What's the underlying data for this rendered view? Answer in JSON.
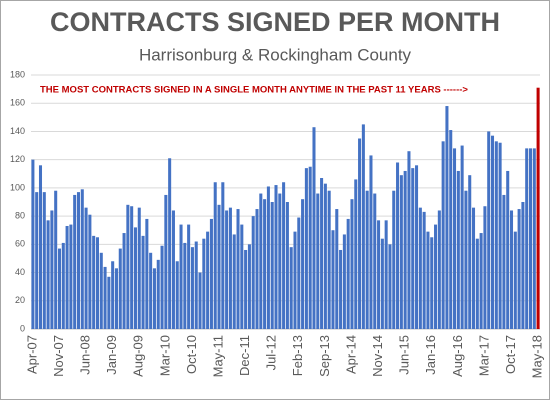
{
  "chart_data": {
    "type": "bar",
    "title": "CONTRACTS SIGNED PER MONTH",
    "subtitle": "Harrisonburg & Rockingham County",
    "annotation": "THE MOST CONTRACTS SIGNED IN A SINGLE MONTH ANYTIME IN THE PAST 11 YEARS ------>",
    "categories": [
      "Apr-07",
      null,
      null,
      null,
      null,
      null,
      null,
      "Nov-07",
      null,
      null,
      null,
      null,
      null,
      null,
      "Jun-08",
      null,
      null,
      null,
      null,
      null,
      null,
      "Jan-09",
      null,
      null,
      null,
      null,
      null,
      null,
      "Aug-09",
      null,
      null,
      null,
      null,
      null,
      null,
      "Mar-10",
      null,
      null,
      null,
      null,
      null,
      null,
      "Oct-10",
      null,
      null,
      null,
      null,
      null,
      null,
      "May-11",
      null,
      null,
      null,
      null,
      null,
      null,
      "Dec-11",
      null,
      null,
      null,
      null,
      null,
      null,
      "Jul-12",
      null,
      null,
      null,
      null,
      null,
      null,
      "Feb-13",
      null,
      null,
      null,
      null,
      null,
      null,
      "Sep-13",
      null,
      null,
      null,
      null,
      null,
      null,
      "Apr-14",
      null,
      null,
      null,
      null,
      null,
      null,
      "Nov-14",
      null,
      null,
      null,
      null,
      null,
      null,
      "Jun-15",
      null,
      null,
      null,
      null,
      null,
      null,
      "Jan-16",
      null,
      null,
      null,
      null,
      null,
      null,
      "Aug-16",
      null,
      null,
      null,
      null,
      null,
      null,
      "Mar-17",
      null,
      null,
      null,
      null,
      null,
      null,
      "Oct-17",
      null,
      null,
      null,
      null,
      null,
      null,
      "May-18"
    ],
    "values": [
      120,
      97,
      116,
      97,
      77,
      84,
      98,
      57,
      61,
      73,
      74,
      95,
      97,
      99,
      86,
      81,
      66,
      65,
      54,
      44,
      37,
      48,
      43,
      57,
      68,
      88,
      87,
      72,
      86,
      66,
      78,
      54,
      43,
      49,
      59,
      95,
      121,
      84,
      48,
      74,
      61,
      74,
      58,
      62,
      40,
      64,
      69,
      78,
      104,
      88,
      104,
      84,
      86,
      67,
      85,
      74,
      56,
      60,
      80,
      85,
      96,
      92,
      101,
      90,
      102,
      96,
      104,
      90,
      58,
      69,
      79,
      92,
      114,
      115,
      143,
      96,
      107,
      103,
      98,
      70,
      85,
      56,
      67,
      78,
      92,
      106,
      135,
      145,
      98,
      123,
      96,
      77,
      64,
      77,
      60,
      98,
      118,
      109,
      112,
      126,
      114,
      116,
      86,
      83,
      69,
      65,
      74,
      84,
      133,
      158,
      141,
      128,
      112,
      130,
      98,
      109,
      86,
      64,
      68,
      87,
      140,
      137,
      133,
      132,
      95,
      112,
      84,
      69,
      85,
      90,
      128,
      128,
      128,
      171
    ],
    "color": "#4472c4",
    "highlight": {
      "index": 133,
      "color": "#c00000"
    },
    "ylim": [
      0,
      180
    ],
    "yticks": [
      0,
      20,
      40,
      60,
      80,
      100,
      120,
      140,
      160,
      180
    ],
    "grid": true
  }
}
